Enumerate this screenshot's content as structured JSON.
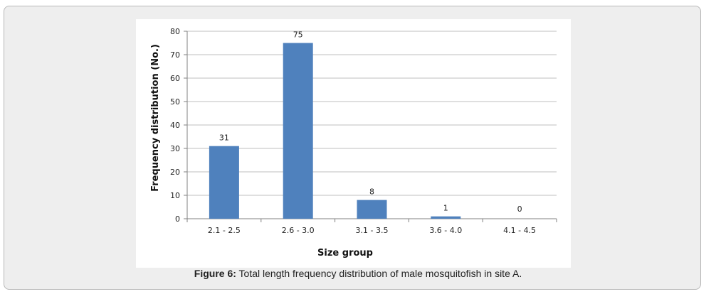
{
  "chart_data": {
    "type": "bar",
    "categories": [
      "2.1 - 2.5",
      "2.6 - 3.0",
      "3.1 - 3.5",
      "3.6 - 4.0",
      "4.1 - 4.5"
    ],
    "values": [
      31,
      75,
      8,
      1,
      0
    ],
    "title": "",
    "xlabel": "Size group",
    "ylabel": "Frequency distribution (No.)",
    "ylim": [
      0,
      80
    ],
    "yticks": [
      0,
      10,
      20,
      30,
      40,
      50,
      60,
      70,
      80
    ],
    "grid": true,
    "bar_color": "#4f81bd"
  },
  "caption": {
    "label": "Figure 6:",
    "text": " Total length frequency distribution of male mosquitofish in site A."
  }
}
